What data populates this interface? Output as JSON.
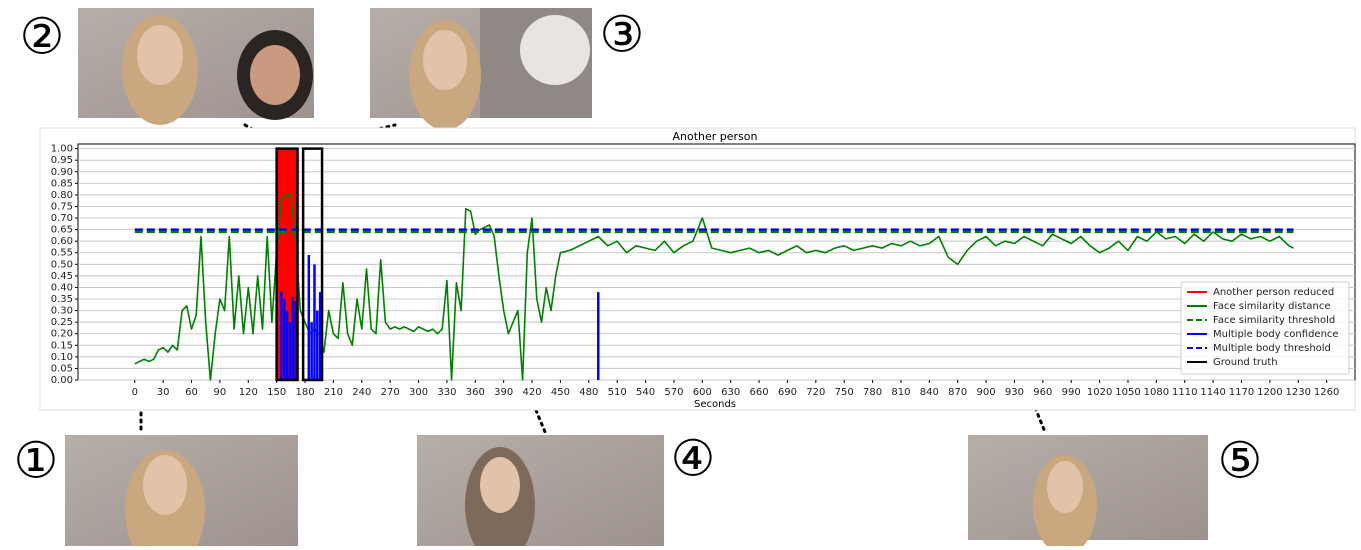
{
  "callouts": [
    "①",
    "②",
    "③",
    "④",
    "⑤"
  ],
  "chart_data": {
    "type": "line",
    "title": "Another person",
    "x_label": "Seconds",
    "xlim": [
      -60,
      1290
    ],
    "ylim": [
      0,
      1.02
    ],
    "grid": true,
    "legend": "lower right",
    "xticks": [
      0,
      30,
      60,
      90,
      120,
      150,
      180,
      210,
      240,
      270,
      300,
      330,
      360,
      390,
      420,
      450,
      480,
      510,
      540,
      570,
      600,
      630,
      660,
      690,
      720,
      750,
      780,
      810,
      840,
      870,
      900,
      930,
      960,
      990,
      1020,
      1050,
      1080,
      1110,
      1140,
      1170,
      1200,
      1230,
      1260
    ],
    "yticks": [
      {
        "value": 0,
        "label": "0.00"
      },
      0.05,
      {
        "value": 0.1,
        "label": "0.10"
      },
      0.15,
      {
        "value": 0.2,
        "label": "0.20"
      },
      0.25,
      {
        "value": 0.3,
        "label": "0.30"
      },
      0.35,
      {
        "value": 0.4,
        "label": "0.40"
      },
      0.45,
      {
        "value": 0.5,
        "label": "0.50"
      },
      0.55,
      {
        "value": 0.6,
        "label": "0.60"
      },
      0.65,
      {
        "value": 0.7,
        "label": "0.70"
      },
      0.75,
      {
        "value": 0.8,
        "label": "0.80"
      },
      0.85,
      {
        "value": 0.9,
        "label": "0.90"
      },
      0.95,
      {
        "value": 1,
        "label": "1.00"
      }
    ],
    "series": [
      {
        "name": "Another person reduced",
        "color": "#ff0000",
        "style": "spikes",
        "x": [
          152,
          154,
          156,
          158,
          160,
          162,
          164,
          166,
          168,
          170,
          172
        ],
        "values": [
          1,
          1,
          1,
          1,
          1,
          1,
          1,
          1,
          1,
          1,
          1
        ]
      },
      {
        "name": "Face similarity distance",
        "color": "#008000",
        "style": "solid",
        "x": [
          0,
          5,
          10,
          15,
          20,
          25,
          30,
          35,
          40,
          45,
          50,
          55,
          60,
          65,
          70,
          75,
          80,
          85,
          90,
          95,
          100,
          105,
          110,
          115,
          120,
          125,
          130,
          135,
          140,
          145,
          150,
          155,
          160,
          165,
          170,
          175,
          180,
          185,
          190,
          195,
          200,
          205,
          210,
          215,
          220,
          225,
          230,
          235,
          240,
          245,
          250,
          255,
          260,
          265,
          270,
          275,
          280,
          285,
          290,
          295,
          300,
          305,
          310,
          315,
          320,
          325,
          330,
          335,
          340,
          345,
          350,
          355,
          360,
          365,
          370,
          375,
          380,
          385,
          390,
          395,
          400,
          405,
          410,
          415,
          420,
          425,
          430,
          435,
          440,
          445,
          450,
          460,
          470,
          480,
          490,
          500,
          510,
          520,
          530,
          540,
          550,
          560,
          570,
          580,
          590,
          600,
          610,
          620,
          630,
          640,
          650,
          660,
          670,
          680,
          690,
          700,
          710,
          720,
          730,
          740,
          750,
          760,
          770,
          780,
          790,
          800,
          810,
          820,
          830,
          840,
          850,
          860,
          870,
          880,
          890,
          900,
          910,
          920,
          930,
          940,
          950,
          960,
          970,
          980,
          990,
          1000,
          1010,
          1020,
          1030,
          1040,
          1050,
          1060,
          1070,
          1080,
          1090,
          1100,
          1110,
          1120,
          1130,
          1140,
          1150,
          1160,
          1170,
          1180,
          1190,
          1200,
          1210,
          1220,
          1225
        ],
        "values": [
          0.07,
          0.08,
          0.09,
          0.08,
          0.09,
          0.13,
          0.14,
          0.12,
          0.15,
          0.13,
          0.3,
          0.32,
          0.22,
          0.28,
          0.62,
          0.25,
          0,
          0.2,
          0.35,
          0.3,
          0.62,
          0.22,
          0.45,
          0.2,
          0.4,
          0.2,
          0.45,
          0.22,
          0.62,
          0.25,
          0.55,
          0.78,
          0.8,
          0.8,
          0.6,
          0.3,
          0.25,
          0.2,
          0.22,
          0.2,
          0.12,
          0.3,
          0.2,
          0.18,
          0.42,
          0.2,
          0.15,
          0.35,
          0.22,
          0.48,
          0.22,
          0.2,
          0.52,
          0.25,
          0.22,
          0.23,
          0.22,
          0.23,
          0.22,
          0.21,
          0.23,
          0.22,
          0.21,
          0.22,
          0.2,
          0.22,
          0.43,
          0,
          0.42,
          0.3,
          0.74,
          0.73,
          0.63,
          0.65,
          0.66,
          0.67,
          0.62,
          0.45,
          0.3,
          0.2,
          0.25,
          0.3,
          0,
          0.55,
          0.7,
          0.35,
          0.25,
          0.4,
          0.3,
          0.45,
          0.55,
          0.56,
          0.58,
          0.6,
          0.62,
          0.58,
          0.6,
          0.55,
          0.58,
          0.57,
          0.56,
          0.6,
          0.55,
          0.58,
          0.6,
          0.7,
          0.57,
          0.56,
          0.55,
          0.56,
          0.57,
          0.55,
          0.56,
          0.54,
          0.56,
          0.58,
          0.55,
          0.56,
          0.55,
          0.57,
          0.58,
          0.56,
          0.57,
          0.58,
          0.57,
          0.59,
          0.58,
          0.6,
          0.58,
          0.59,
          0.62,
          0.53,
          0.5,
          0.56,
          0.6,
          0.62,
          0.58,
          0.6,
          0.59,
          0.62,
          0.6,
          0.58,
          0.63,
          0.61,
          0.59,
          0.62,
          0.58,
          0.55,
          0.57,
          0.6,
          0.56,
          0.62,
          0.6,
          0.64,
          0.61,
          0.62,
          0.59,
          0.63,
          0.6,
          0.64,
          0.61,
          0.6,
          0.63,
          0.61,
          0.62,
          0.6,
          0.62,
          0.58,
          0.57
        ]
      },
      {
        "name": "Face similarity threshold",
        "color": "#008000",
        "style": "dashed",
        "x": [
          0,
          1225
        ],
        "values": [
          0.64,
          0.64
        ]
      },
      {
        "name": "Multiple body confidence",
        "color": "#0000ff",
        "style": "spikes",
        "x": [
          155,
          158,
          161,
          164,
          167,
          170,
          184,
          187,
          190,
          193,
          196,
          490
        ],
        "values": [
          0.38,
          0.35,
          0.3,
          0.25,
          0.36,
          0.34,
          0.54,
          0.25,
          0.5,
          0.3,
          0.38,
          0.38
        ]
      },
      {
        "name": "Multiple body threshold",
        "color": "#0000ff",
        "style": "dashed",
        "x": [
          0,
          1225
        ],
        "values": [
          0.65,
          0.65
        ]
      },
      {
        "name": "Ground truth",
        "color": "#000000",
        "style": "boxes",
        "x": [
          [
            150,
            172
          ],
          [
            178,
            198
          ]
        ],
        "values": [
          1,
          1
        ]
      }
    ]
  }
}
